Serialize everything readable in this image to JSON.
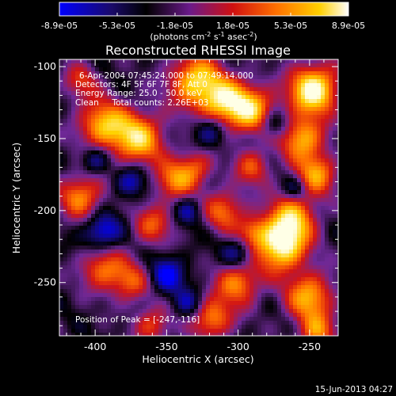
{
  "colorbar": {
    "tick_labels": [
      "-8.9e-05",
      "-5.3e-05",
      "-1.8e-05",
      "1.8e-05",
      "5.3e-05",
      "8.9e-05"
    ],
    "unit_main": "(photons cm",
    "unit_exp1": "-2",
    "unit_s": " s",
    "unit_exp2": "-1",
    "unit_asec": " asec",
    "unit_exp3": "-2",
    "unit_close": ")"
  },
  "annotations": {
    "time_range": "6-Apr-2004 07:45:24.000 to 07:49:14.000",
    "detectors": "Detectors: 4F 5F 6F 7F 8F, Att 0",
    "energy": "Energy Range: 25.0 - 50.0 keV",
    "clean": "Clean     Total counts: 2.26E+03",
    "peak": "Position of Peak = [-247,-116]"
  },
  "footer": {
    "date": "15-Jun-2013 04:27"
  },
  "colors": {
    "background": "#000000",
    "foreground": "#ffffff",
    "colormap": [
      "#0000ff",
      "#000000",
      "#5a1078",
      "#8a2a9a",
      "#ff0000",
      "#ff8000",
      "#ffd000",
      "#ffffff"
    ]
  },
  "chart_data": {
    "type": "heatmap",
    "title": "Reconstructed RHESSI Image",
    "xlabel": "Heliocentric X (arcsec)",
    "ylabel": "Heliocentric Y (arcsec)",
    "xlim": [
      -425,
      -230
    ],
    "ylim": [
      -287,
      -95
    ],
    "x_ticks": [
      -400,
      -350,
      -300,
      -250
    ],
    "y_ticks": [
      -100,
      -150,
      -200,
      -250
    ],
    "x_tick_labels": [
      "-400",
      "-350",
      "-300",
      "-250"
    ],
    "y_tick_labels": [
      "-100",
      "-150",
      "-200",
      "-250"
    ],
    "value_range": [
      -8.9e-05,
      8.9e-05
    ],
    "peak_position": [
      -247,
      -116
    ],
    "grid": false,
    "colorbar_position": "top"
  }
}
